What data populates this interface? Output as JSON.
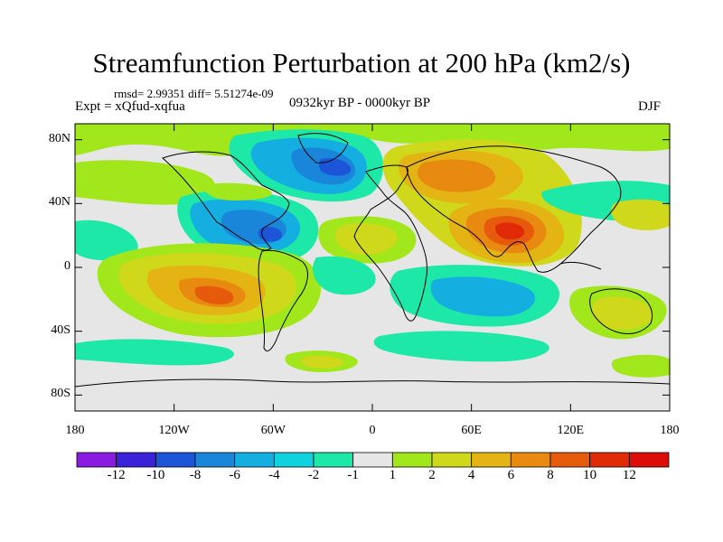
{
  "title": "Streamfunction Perturbation at 200 hPa (km2/s)",
  "stats_line": "rmsd= 2.99351 diff= 5.51274e-09",
  "experiment_line": "Expt = xQfud-xqfua",
  "period_line": "0932kyr BP - 0000kyr BP",
  "season_label": "DJF",
  "map": {
    "lat_ticks": [
      "80N",
      "40N",
      "0",
      "40S",
      "80S"
    ],
    "lat_tick_values": [
      80,
      40,
      0,
      -40,
      -80
    ],
    "lon_ticks": [
      "180",
      "120W",
      "60W",
      "0",
      "60E",
      "120E",
      "180"
    ],
    "lon_tick_values": [
      -180,
      -120,
      -60,
      0,
      60,
      120,
      180
    ],
    "background_color": "#e6e6e6",
    "coastline_color": "#000000"
  },
  "colorbar": {
    "labels": [
      "-12",
      "-10",
      "-8",
      "-6",
      "-4",
      "-2",
      "-1",
      "1",
      "2",
      "4",
      "6",
      "8",
      "10",
      "12"
    ],
    "colors": [
      "#8a1be0",
      "#3a22d9",
      "#1d55d8",
      "#1a86da",
      "#14aee0",
      "#10d2dc",
      "#1de8a8",
      "#e6e6e6",
      "#a2e61c",
      "#cfd81a",
      "#e3b414",
      "#e88a10",
      "#e65a0c",
      "#e02a08",
      "#dc0c08"
    ]
  }
}
